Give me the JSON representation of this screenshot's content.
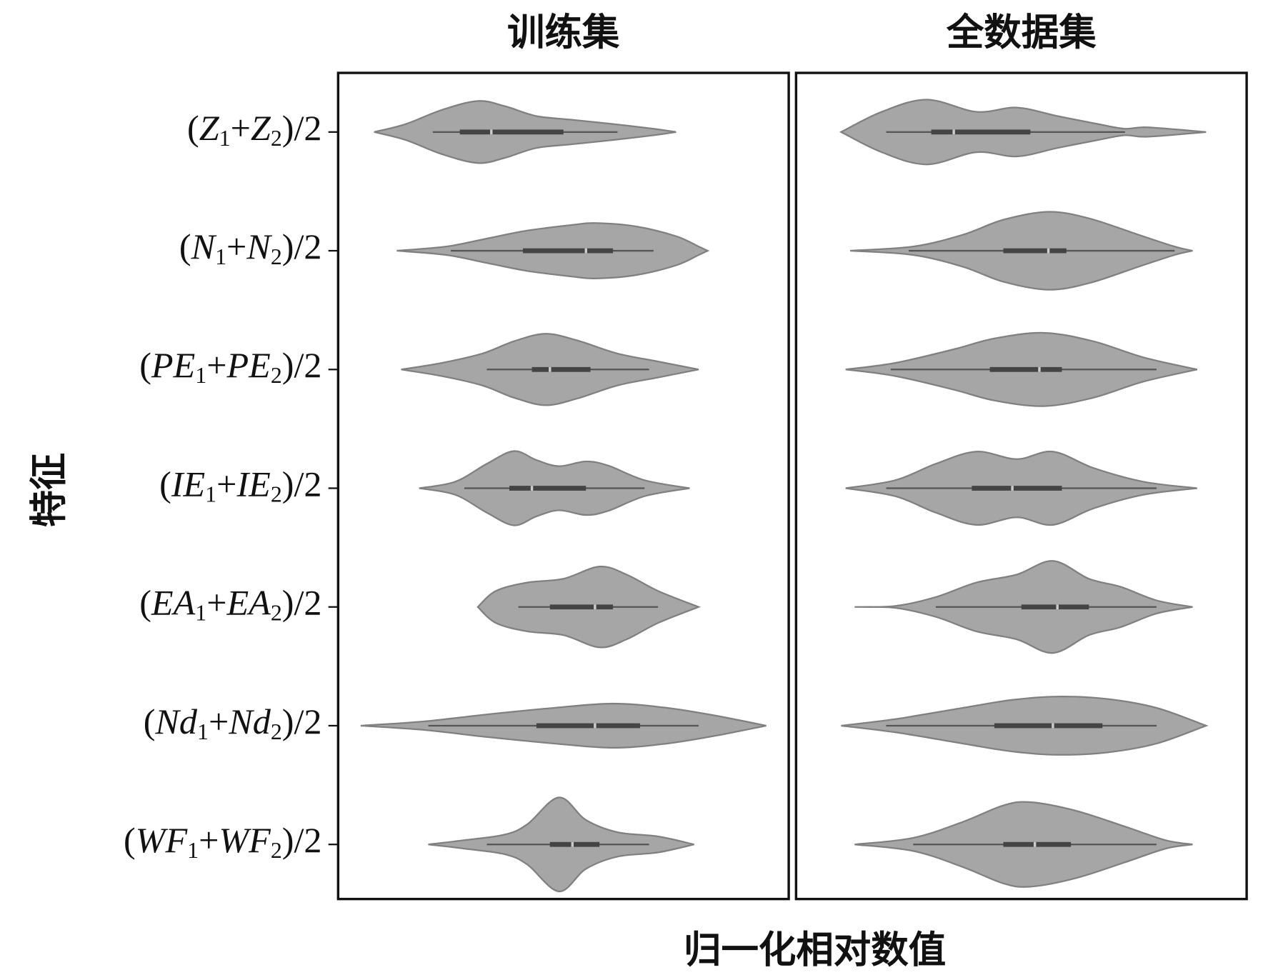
{
  "chart_data": {
    "type": "violin",
    "x_label": "归一化相对数值",
    "y_label": "特征",
    "color": "#a6a6a6",
    "xlim": [
      0,
      1
    ],
    "categories": [
      "(Z1+Z2)/2",
      "(N1+N2)/2",
      "(PE1+PE2)/2",
      "(IE1+IE2)/2",
      "(EA1+EA2)/2",
      "(Nd1+Nd2)/2",
      "(WF1+WF2)/2"
    ],
    "panels": [
      {
        "title": "训练集",
        "violins": [
          {
            "kde_x": [
              0.08,
              0.15,
              0.23,
              0.31,
              0.37,
              0.44,
              0.52,
              0.61,
              0.7,
              0.75
            ],
            "density": [
              0,
              0.17,
              0.47,
              0.66,
              0.55,
              0.34,
              0.26,
              0.17,
              0.07,
              0
            ],
            "box": {
              "min": 0.21,
              "q1": 0.27,
              "median": 0.34,
              "q3": 0.5,
              "max": 0.62
            }
          },
          {
            "kde_x": [
              0.13,
              0.24,
              0.33,
              0.42,
              0.52,
              0.57,
              0.66,
              0.75,
              0.8,
              0.82
            ],
            "density": [
              0,
              0.09,
              0.26,
              0.43,
              0.55,
              0.59,
              0.52,
              0.31,
              0.09,
              0
            ],
            "box": {
              "min": 0.25,
              "q1": 0.41,
              "median": 0.55,
              "q3": 0.61,
              "max": 0.7
            }
          },
          {
            "kde_x": [
              0.14,
              0.23,
              0.32,
              0.39,
              0.46,
              0.53,
              0.62,
              0.71,
              0.8
            ],
            "density": [
              0,
              0.14,
              0.34,
              0.6,
              0.76,
              0.62,
              0.34,
              0.17,
              0
            ],
            "box": {
              "min": 0.33,
              "q1": 0.43,
              "median": 0.47,
              "q3": 0.56,
              "max": 0.69
            }
          },
          {
            "kde_x": [
              0.18,
              0.26,
              0.33,
              0.39,
              0.44,
              0.49,
              0.55,
              0.6,
              0.68,
              0.78
            ],
            "density": [
              0,
              0.14,
              0.52,
              0.79,
              0.6,
              0.47,
              0.57,
              0.48,
              0.17,
              0
            ],
            "box": {
              "min": 0.28,
              "q1": 0.38,
              "median": 0.43,
              "q3": 0.55,
              "max": 0.68
            }
          },
          {
            "kde_x": [
              0.31,
              0.35,
              0.42,
              0.5,
              0.58,
              0.64,
              0.71,
              0.8
            ],
            "density": [
              0,
              0.34,
              0.52,
              0.6,
              0.86,
              0.69,
              0.34,
              0
            ],
            "box": {
              "min": 0.4,
              "q1": 0.47,
              "median": 0.57,
              "q3": 0.61,
              "max": 0.71
            }
          },
          {
            "kde_x": [
              0.05,
              0.19,
              0.33,
              0.48,
              0.61,
              0.73,
              0.84,
              0.95
            ],
            "density": [
              0,
              0.09,
              0.24,
              0.38,
              0.47,
              0.38,
              0.21,
              0
            ],
            "box": {
              "min": 0.2,
              "q1": 0.44,
              "median": 0.57,
              "q3": 0.67,
              "max": 0.8
            }
          },
          {
            "kde_x": [
              0.2,
              0.28,
              0.37,
              0.42,
              0.49,
              0.55,
              0.62,
              0.71,
              0.79
            ],
            "density": [
              0,
              0.09,
              0.21,
              0.43,
              1,
              0.52,
              0.26,
              0.17,
              0
            ],
            "box": {
              "min": 0.33,
              "q1": 0.47,
              "median": 0.52,
              "q3": 0.58,
              "max": 0.69
            }
          }
        ]
      },
      {
        "title": "全数据集",
        "violins": [
          {
            "kde_x": [
              0.1,
              0.19,
              0.29,
              0.4,
              0.49,
              0.58,
              0.67,
              0.73,
              0.78,
              0.91
            ],
            "density": [
              0,
              0.43,
              0.69,
              0.43,
              0.52,
              0.34,
              0.17,
              0.07,
              0.1,
              0
            ],
            "box": {
              "min": 0.2,
              "q1": 0.3,
              "median": 0.35,
              "q3": 0.52,
              "max": 0.73
            }
          },
          {
            "kde_x": [
              0.12,
              0.26,
              0.37,
              0.46,
              0.56,
              0.65,
              0.76,
              0.84,
              0.88
            ],
            "density": [
              0,
              0.09,
              0.34,
              0.66,
              0.83,
              0.69,
              0.34,
              0.09,
              0
            ],
            "box": {
              "min": 0.25,
              "q1": 0.46,
              "median": 0.56,
              "q3": 0.6,
              "max": 0.84
            }
          },
          {
            "kde_x": [
              0.11,
              0.22,
              0.35,
              0.44,
              0.55,
              0.66,
              0.77,
              0.89
            ],
            "density": [
              0,
              0.14,
              0.43,
              0.66,
              0.78,
              0.6,
              0.26,
              0
            ],
            "box": {
              "min": 0.21,
              "q1": 0.43,
              "median": 0.54,
              "q3": 0.59,
              "max": 0.8
            }
          },
          {
            "kde_x": [
              0.11,
              0.22,
              0.31,
              0.4,
              0.49,
              0.57,
              0.66,
              0.77,
              0.89
            ],
            "density": [
              0,
              0.17,
              0.52,
              0.78,
              0.62,
              0.78,
              0.43,
              0.14,
              0
            ],
            "box": {
              "min": 0.2,
              "q1": 0.39,
              "median": 0.48,
              "q3": 0.59,
              "max": 0.8
            }
          },
          {
            "kde_x": [
              0.13,
              0.22,
              0.31,
              0.4,
              0.49,
              0.57,
              0.65,
              0.72,
              0.8,
              0.88
            ],
            "density": [
              0,
              0.02,
              0.21,
              0.52,
              0.69,
              0.98,
              0.6,
              0.43,
              0.14,
              0
            ],
            "box": {
              "min": 0.31,
              "q1": 0.5,
              "median": 0.58,
              "q3": 0.65,
              "max": 0.8
            }
          },
          {
            "kde_x": [
              0.1,
              0.22,
              0.37,
              0.48,
              0.58,
              0.69,
              0.8,
              0.91
            ],
            "density": [
              0,
              0.14,
              0.38,
              0.55,
              0.62,
              0.57,
              0.38,
              0
            ],
            "box": {
              "min": 0.2,
              "q1": 0.44,
              "median": 0.57,
              "q3": 0.68,
              "max": 0.8
            }
          },
          {
            "kde_x": [
              0.13,
              0.26,
              0.37,
              0.46,
              0.52,
              0.62,
              0.73,
              0.82,
              0.88
            ],
            "density": [
              0,
              0.14,
              0.48,
              0.83,
              0.9,
              0.72,
              0.38,
              0.09,
              0
            ],
            "box": {
              "min": 0.26,
              "q1": 0.46,
              "median": 0.53,
              "q3": 0.61,
              "max": 0.8
            }
          }
        ]
      }
    ]
  }
}
